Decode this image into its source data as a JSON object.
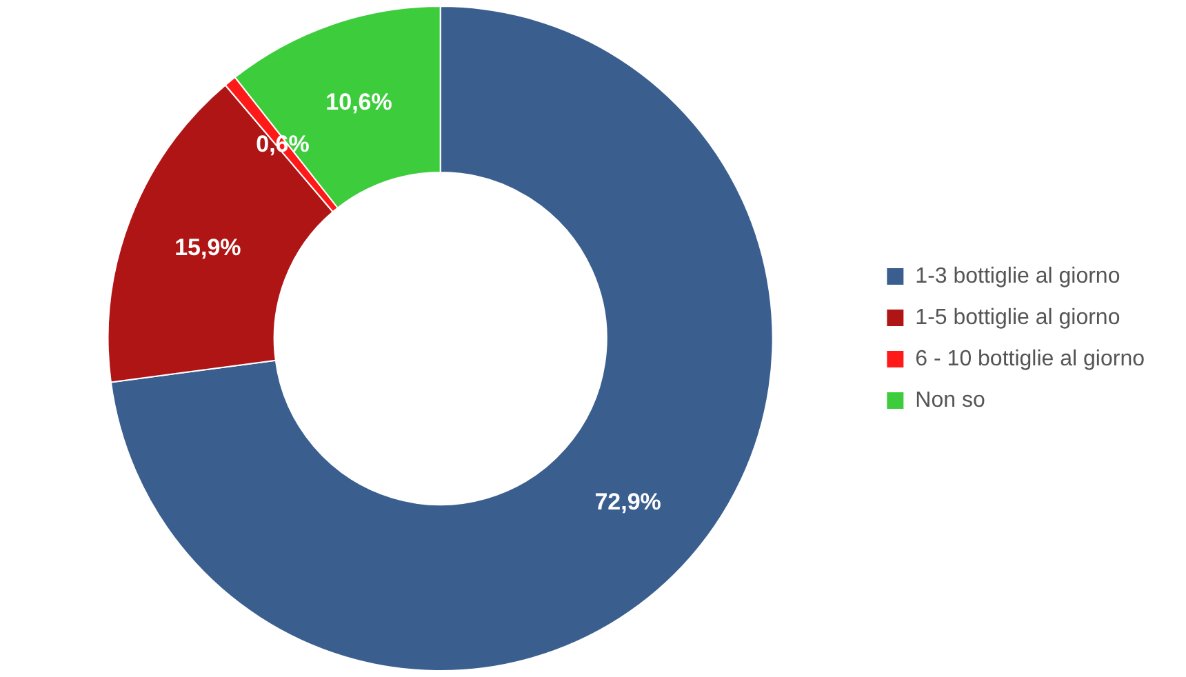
{
  "chart_data": {
    "type": "donut",
    "categories": [
      "1-3 bottiglie al giorno",
      "1-5 bottiglie al giorno",
      "6 - 10 bottiglie al giorno",
      "Non so"
    ],
    "values": [
      72.9,
      15.9,
      0.6,
      10.6
    ],
    "colors": [
      "#3a5f8f",
      "#b01515",
      "#ff1a1a",
      "#3ccc3c"
    ],
    "value_labels": [
      "72,9%",
      "15,9%",
      "0,6%",
      "10,6%"
    ],
    "legend": "right"
  }
}
